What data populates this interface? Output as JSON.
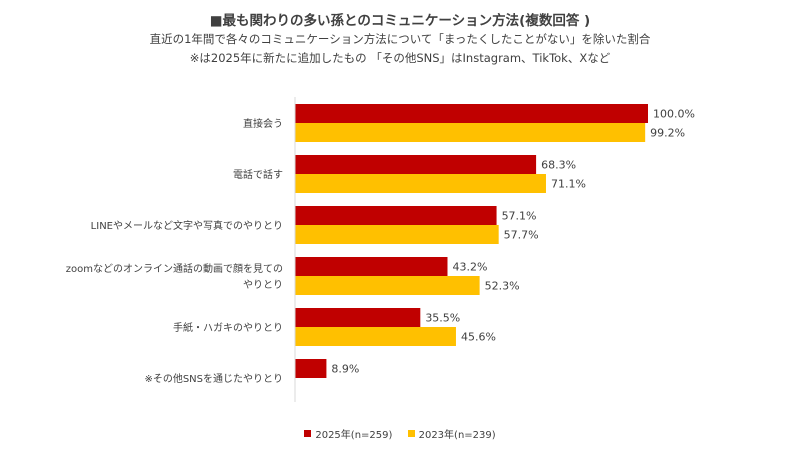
{
  "chart_data": {
    "type": "bar",
    "orientation": "horizontal",
    "title": "■最も関わりの多い孫とのコミュニケーション方法(複数回答 )",
    "subtitle": "直近の1年間で各々のコミュニケーション方法について「まったくしたことがない」を除いた割合",
    "note": "※は2025年に新たに追加したもの 「その他SNS」はInstagram、TikTok、Xなど",
    "categories": [
      [
        "直接会う"
      ],
      [
        "電話で話す"
      ],
      [
        "LINEやメールなど文字や写真でのやりとり"
      ],
      [
        "zoomなどのオンライン通話の動画で顔を見ての",
        "やりとり"
      ],
      [
        "手紙・ハガキのやりとり"
      ],
      [
        "※その他SNSを通じたやりとり"
      ]
    ],
    "series": [
      {
        "name": "2025年(n=259)",
        "color": "#C00000",
        "values": [
          100.0,
          68.3,
          57.1,
          43.2,
          35.5,
          8.9
        ],
        "labels": [
          "100.0%",
          "68.3%",
          "57.1%",
          "43.2%",
          "35.5%",
          "8.9%"
        ]
      },
      {
        "name": "2023年(n=239)",
        "color": "#FFC000",
        "values": [
          99.2,
          71.1,
          57.7,
          52.3,
          45.6,
          null
        ],
        "labels": [
          "99.2%",
          "71.1%",
          "57.7%",
          "52.3%",
          "45.6%",
          ""
        ]
      }
    ],
    "xlim": [
      0,
      100
    ],
    "grid": false,
    "legend_position": "bottom"
  }
}
